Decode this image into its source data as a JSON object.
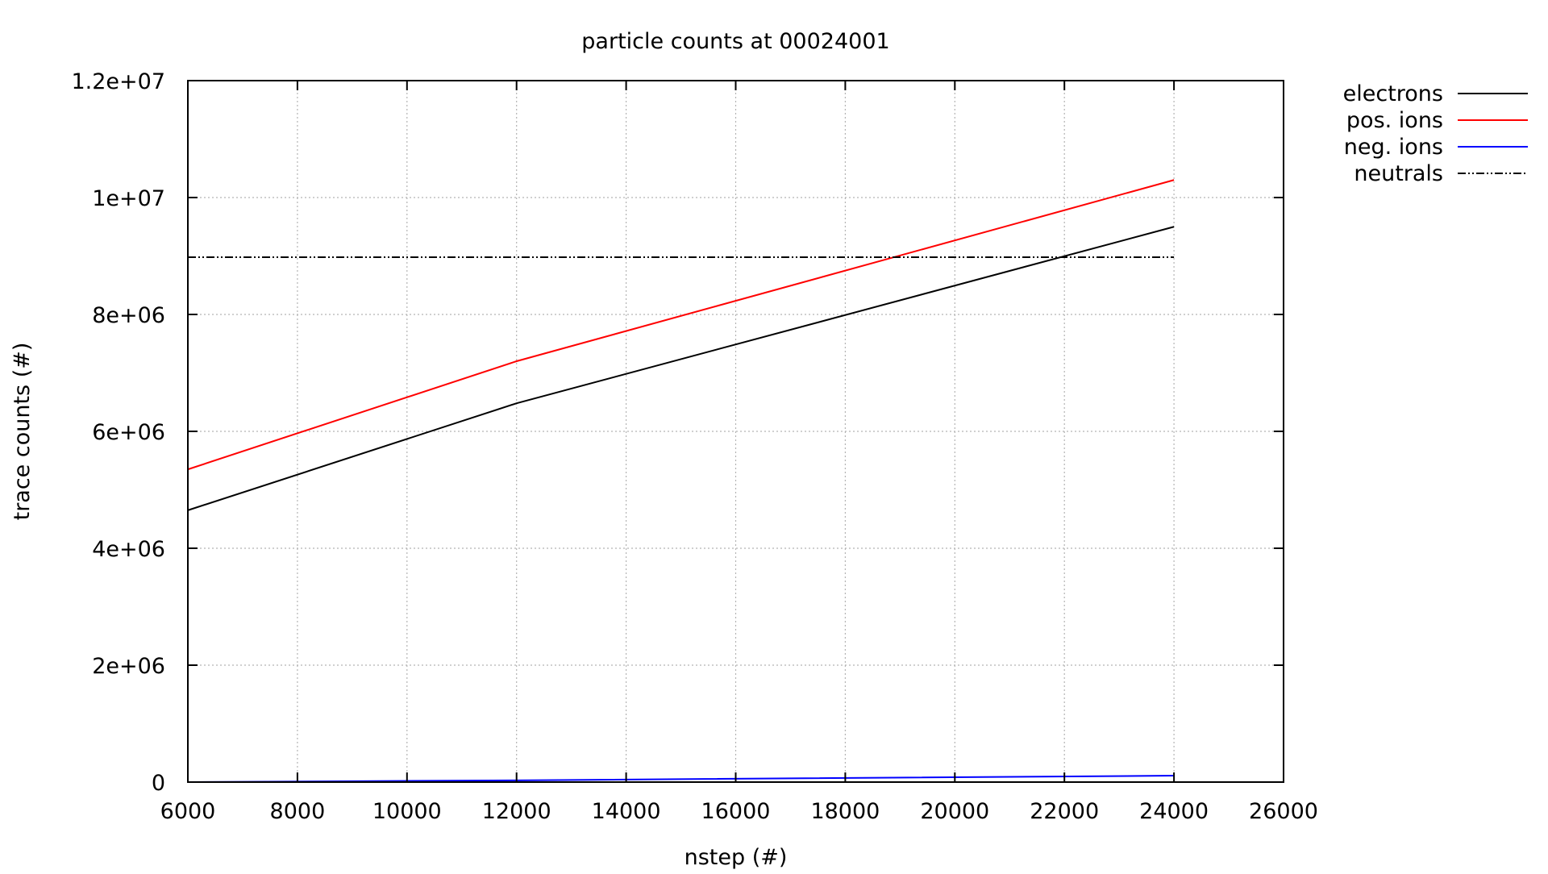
{
  "chart_data": {
    "type": "line",
    "title": "particle counts at 00024001",
    "xlabel": "nstep (#)",
    "ylabel": "trace counts (#)",
    "xlim": [
      6000,
      26000
    ],
    "ylim": [
      0,
      12000000
    ],
    "x_ticks": [
      6000,
      8000,
      10000,
      12000,
      14000,
      16000,
      18000,
      20000,
      22000,
      24000,
      26000
    ],
    "x_tick_labels": [
      "6000",
      "8000",
      "10000",
      "12000",
      "14000",
      "16000",
      "18000",
      "20000",
      "22000",
      "24000",
      "26000"
    ],
    "y_ticks": [
      0,
      2000000,
      4000000,
      6000000,
      8000000,
      10000000,
      12000000
    ],
    "y_tick_labels": [
      "0",
      "2e+06",
      "4e+06",
      "6e+06",
      "8e+06",
      "1e+07",
      "1.2e+07"
    ],
    "grid": true,
    "legend_position": "outside-top-right",
    "series": [
      {
        "name": "electrons",
        "color": "#000000",
        "style": "solid",
        "x": [
          6000,
          12000,
          24000
        ],
        "y": [
          4650000,
          6480000,
          9500000
        ]
      },
      {
        "name": "pos. ions",
        "color": "#ff0000",
        "style": "solid",
        "x": [
          6000,
          12000,
          24000
        ],
        "y": [
          5350000,
          7200000,
          10300000
        ]
      },
      {
        "name": "neg. ions",
        "color": "#0000ff",
        "style": "solid",
        "x": [
          6000,
          12000,
          24000
        ],
        "y": [
          0,
          30000,
          110000
        ]
      },
      {
        "name": "neutrals",
        "color": "#000000",
        "style": "dash-dot-dot",
        "x": [
          6000,
          12000,
          24000
        ],
        "y": [
          8980000,
          8980000,
          8980000
        ]
      }
    ]
  }
}
